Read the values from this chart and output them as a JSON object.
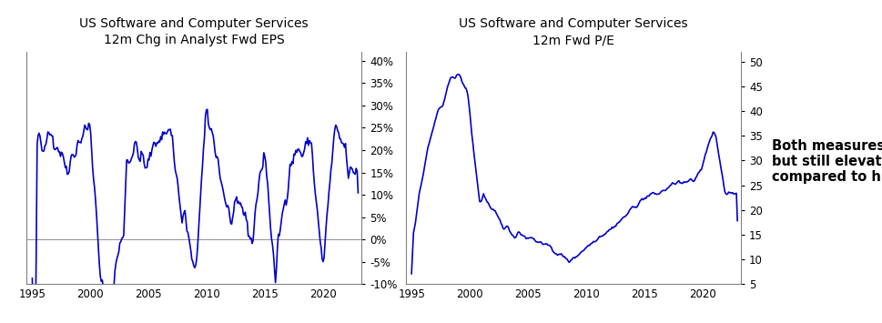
{
  "title1": "US Software and Computer Services\n12m Chg in Analyst Fwd EPS",
  "title2": "US Software and Computer Services\n12m Fwd P/E",
  "annotation": "Both measures down\nbut still elevated\ncompared to history",
  "line_color": "#0000CC",
  "line_width": 1.2,
  "chart1_ylim": [
    -0.1,
    0.42
  ],
  "chart1_yticks": [
    -0.1,
    -0.05,
    0.0,
    0.05,
    0.1,
    0.15,
    0.2,
    0.25,
    0.3,
    0.35,
    0.4
  ],
  "chart2_ylim": [
    5,
    52
  ],
  "chart2_yticks": [
    5,
    10,
    15,
    20,
    25,
    30,
    35,
    40,
    45,
    50
  ],
  "xlim_start": 1994.5,
  "xlim_end": 2023.3,
  "xticks": [
    1995,
    2000,
    2005,
    2010,
    2015,
    2020
  ],
  "background_color": "#ffffff",
  "title_fontsize": 10,
  "tick_fontsize": 8.5,
  "annotation_fontsize": 10.5
}
